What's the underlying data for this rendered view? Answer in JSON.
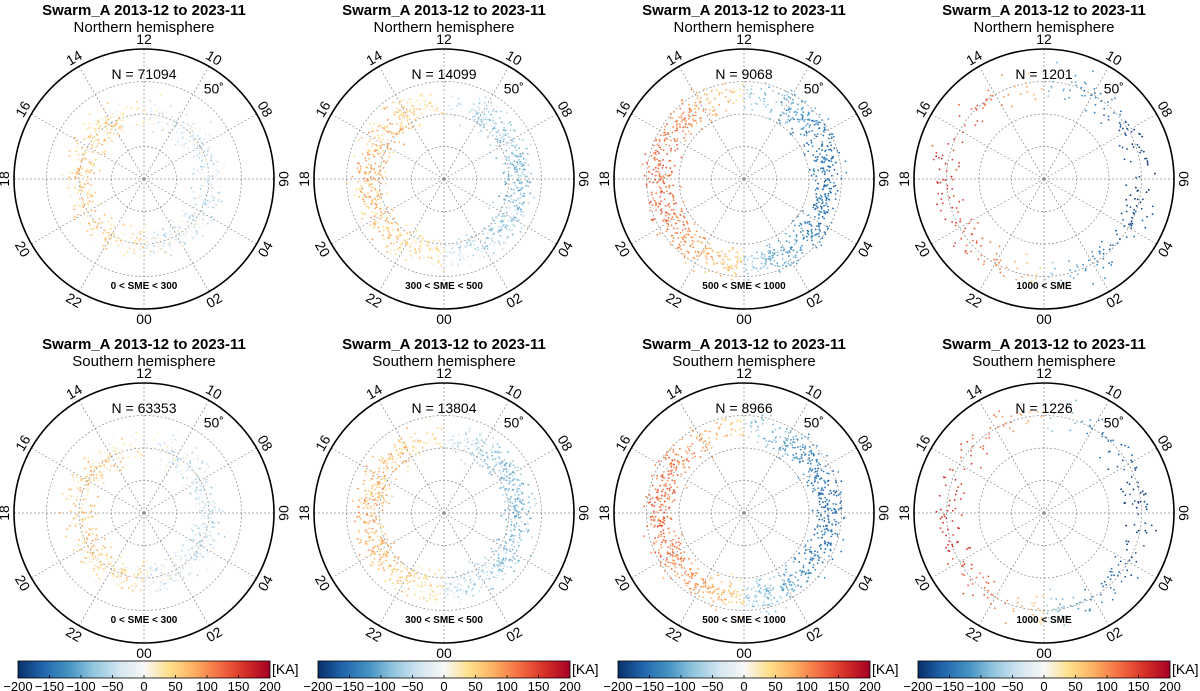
{
  "figure": {
    "colorbar": {
      "unit": "[KA]",
      "min": -200,
      "max": 200,
      "ticks": [
        "−200",
        "−150",
        "−100",
        "−50",
        "0",
        "50",
        "100",
        "150",
        "200"
      ],
      "ticks_values": [
        -200,
        -150,
        -100,
        -50,
        0,
        50,
        100,
        150,
        200
      ],
      "stops": [
        "#08306b",
        "#2166ac",
        "#4393c3",
        "#92c5de",
        "#d1e5f0",
        "#f7f7f7",
        "#fee08b",
        "#fdae61",
        "#f46d43",
        "#d73027",
        "#a50026"
      ]
    },
    "mlt_labels": [
      "00",
      "02",
      "04",
      "06",
      "08",
      "10",
      "12",
      "14",
      "16",
      "18",
      "20",
      "22"
    ],
    "mlt_values": [
      0,
      2,
      4,
      6,
      8,
      10,
      12,
      14,
      16,
      18,
      20,
      22
    ],
    "lat_label": "50˚",
    "lat_boundary_deg": 50
  },
  "chart_data": [
    {
      "type": "scatter",
      "title": "Swarm_A 2013-12 to 2023-11",
      "subtitle": "Northern hemisphere",
      "n_label": "N = 71094",
      "n": 71094,
      "sme_label": "0 < SME < 300",
      "sme_range": [
        0,
        300
      ],
      "ring_mlat": [
        64,
        76
      ],
      "dusk_value_ka": 45,
      "dawn_value_ka": -30,
      "density": 0.35,
      "overlap": 0.7
    },
    {
      "type": "scatter",
      "title": "Swarm_A 2013-12 to 2023-11",
      "subtitle": "Northern hemisphere",
      "n_label": "N = 14099",
      "n": 14099,
      "sme_label": "300 < SME < 500",
      "sme_range": [
        300,
        500
      ],
      "ring_mlat": [
        61,
        73
      ],
      "dusk_value_ka": 75,
      "dawn_value_ka": -80,
      "density": 0.4,
      "overlap": 0.5
    },
    {
      "type": "scatter",
      "title": "Swarm_A 2013-12 to 2023-11",
      "subtitle": "Northern hemisphere",
      "n_label": "N = 9068",
      "n": 9068,
      "sme_label": "500 < SME < 1000",
      "sme_range": [
        500,
        1000
      ],
      "ring_mlat": [
        58,
        70
      ],
      "dusk_value_ka": 120,
      "dawn_value_ka": -150,
      "density": 0.42,
      "overlap": 0.35
    },
    {
      "type": "scatter",
      "title": "Swarm_A 2013-12 to 2023-11",
      "subtitle": "Northern hemisphere",
      "n_label": "N = 1201",
      "n": 1201,
      "sme_label": "1000 < SME",
      "sme_range": [
        1000,
        null
      ],
      "ring_mlat": [
        54,
        66
      ],
      "dusk_value_ka": 160,
      "dawn_value_ka": -190,
      "density": 0.12,
      "overlap": 0.25
    },
    {
      "type": "scatter",
      "title": "Swarm_A 2013-12 to 2023-11",
      "subtitle": "Southern hemisphere",
      "n_label": "N = 63353",
      "n": 63353,
      "sme_label": "0 < SME < 300",
      "sme_range": [
        0,
        300
      ],
      "ring_mlat": [
        64,
        76
      ],
      "dusk_value_ka": 45,
      "dawn_value_ka": -35,
      "density": 0.35,
      "overlap": 0.7
    },
    {
      "type": "scatter",
      "title": "Swarm_A 2013-12 to 2023-11",
      "subtitle": "Southern hemisphere",
      "n_label": "N = 13804",
      "n": 13804,
      "sme_label": "300 < SME < 500",
      "sme_range": [
        300,
        500
      ],
      "ring_mlat": [
        61,
        73
      ],
      "dusk_value_ka": 75,
      "dawn_value_ka": -85,
      "density": 0.4,
      "overlap": 0.5
    },
    {
      "type": "scatter",
      "title": "Swarm_A 2013-12 to 2023-11",
      "subtitle": "Southern hemisphere",
      "n_label": "N = 8966",
      "n": 8966,
      "sme_label": "500 < SME < 1000",
      "sme_range": [
        500,
        1000
      ],
      "ring_mlat": [
        58,
        70
      ],
      "dusk_value_ka": 120,
      "dawn_value_ka": -150,
      "density": 0.42,
      "overlap": 0.35
    },
    {
      "type": "scatter",
      "title": "Swarm_A 2013-12 to 2023-11",
      "subtitle": "Southern hemisphere",
      "n_label": "N = 1226",
      "n": 1226,
      "sme_label": "1000 < SME",
      "sme_range": [
        1000,
        null
      ],
      "ring_mlat": [
        54,
        66
      ],
      "dusk_value_ka": 160,
      "dawn_value_ka": -190,
      "density": 0.12,
      "overlap": 0.25
    }
  ]
}
